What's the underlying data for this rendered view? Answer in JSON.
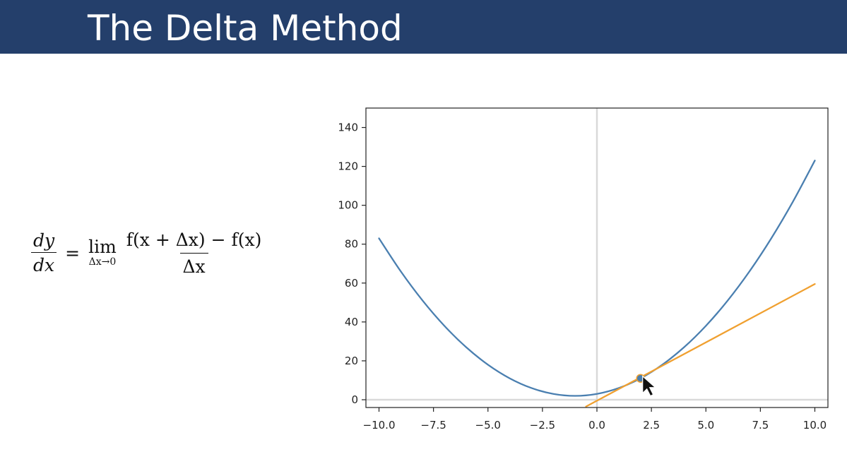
{
  "slide": {
    "title": "The Delta Method"
  },
  "formula": {
    "lhs_numerator": "dy",
    "lhs_denominator": "dx",
    "equals": "=",
    "lim_word": "lim",
    "lim_subscript": "Δx→0",
    "rhs_numerator": "f(x + Δx) − f(x)",
    "rhs_denominator": "Δx"
  },
  "chart_data": {
    "type": "line",
    "title": "",
    "xlabel": "",
    "ylabel": "",
    "xlim": [
      -10.6,
      10.6
    ],
    "ylim": [
      -4,
      150
    ],
    "x_ticks": [
      -10.0,
      -7.5,
      -5.0,
      -2.5,
      0.0,
      2.5,
      5.0,
      7.5,
      10.0
    ],
    "x_tick_labels": [
      "−10.0",
      "−7.5",
      "−5.0",
      "−2.5",
      "0.0",
      "2.5",
      "5.0",
      "7.5",
      "10.0"
    ],
    "y_ticks": [
      0,
      20,
      40,
      60,
      80,
      100,
      120,
      140
    ],
    "y_tick_labels": [
      "0",
      "20",
      "40",
      "60",
      "80",
      "100",
      "120",
      "140"
    ],
    "grid": false,
    "axis_lines": {
      "x": 0,
      "y": 0,
      "color": "#d9d9d9"
    },
    "series": [
      {
        "kind": "curve",
        "color": "#4a7fb0",
        "x": [
          -10,
          -9,
          -8,
          -7,
          -6,
          -5,
          -4,
          -3,
          -2,
          -1,
          0,
          1,
          2,
          3,
          4,
          5,
          6,
          7,
          8,
          9,
          10
        ],
        "y": [
          83,
          66,
          51,
          38,
          27,
          18,
          11,
          6,
          3,
          2,
          3,
          6,
          11,
          18,
          27,
          38,
          51,
          66,
          83,
          102,
          123
        ]
      },
      {
        "kind": "tangent",
        "color": "#f0a030",
        "x": [
          -0.5,
          10
        ],
        "y": [
          -3.5,
          59.5
        ]
      }
    ],
    "point": {
      "x": 2,
      "y": 11,
      "color": "#4a7fb0",
      "edge_color": "#f0a030"
    }
  }
}
